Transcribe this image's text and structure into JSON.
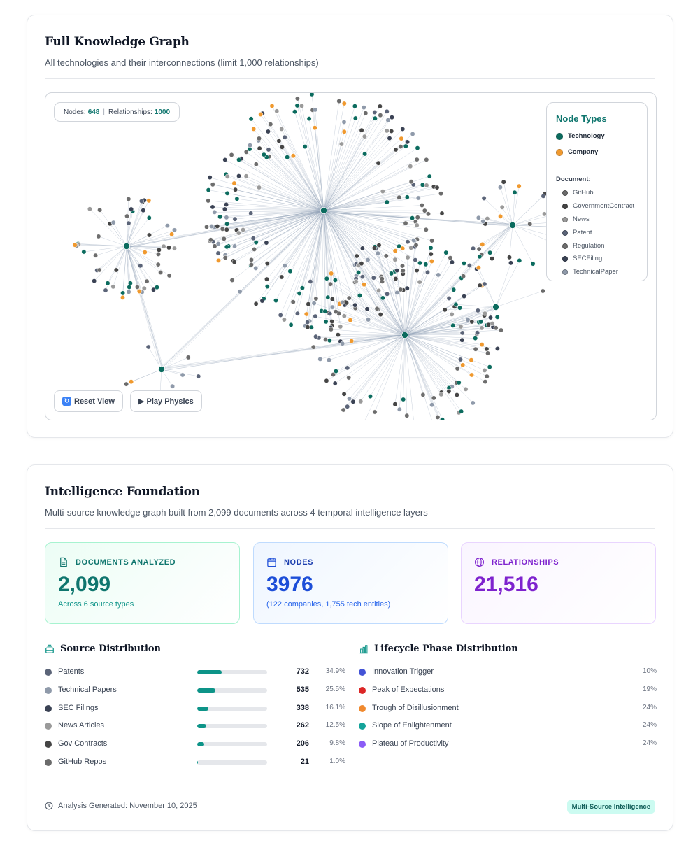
{
  "graph_card": {
    "title": "Full Knowledge Graph",
    "subtitle": "All technologies and their interconnections (limit 1,000 relationships)",
    "stats": {
      "nodes_label": "Nodes:",
      "nodes_value": "648",
      "separator": "|",
      "relationships_label": "Relationships:",
      "relationships_value": "1000"
    },
    "legend": {
      "title": "Node Types",
      "main_types": [
        {
          "label": "Technology",
          "color": "#0b6b5e"
        },
        {
          "label": "Company",
          "color": "#f0992e"
        }
      ],
      "document_label": "Document:",
      "document_types": [
        {
          "label": "GitHub",
          "color": "#6b6b6b"
        },
        {
          "label": "GovernmentContract",
          "color": "#454545"
        },
        {
          "label": "News",
          "color": "#9a9a9a"
        },
        {
          "label": "Patent",
          "color": "#5b6478"
        },
        {
          "label": "Regulation",
          "color": "#6e6e6e"
        },
        {
          "label": "SECFiling",
          "color": "#3a4254"
        },
        {
          "label": "TechnicalPaper",
          "color": "#8f9aaa"
        }
      ]
    },
    "buttons": {
      "reset_icon": "reset-icon",
      "reset_label": "Reset View",
      "play_icon": "play-icon",
      "play_label": "▶ Play Physics"
    }
  },
  "intel_card": {
    "title": "Intelligence Foundation",
    "subtitle": "Multi-source knowledge graph built from 2,099 documents across 4 temporal intelligence layers",
    "stats": [
      {
        "icon": "document-icon",
        "label": "DOCUMENTS ANALYZED",
        "value": "2,099",
        "note": "Across 6 source types",
        "color": "#0f766e"
      },
      {
        "icon": "calendar-icon",
        "label": "NODES",
        "value": "3976",
        "note": "(122 companies, 1,755 tech entities)",
        "color": "#1e40af"
      },
      {
        "icon": "globe-icon",
        "label": "RELATIONSHIPS",
        "value": "21,516",
        "note": "",
        "color": "#7e22ce"
      }
    ],
    "source_distribution": {
      "icon": "layers-icon",
      "title": "Source Distribution",
      "rows": [
        {
          "name": "Patents",
          "count": "732",
          "pct": "34.9%",
          "share": 0.349,
          "color": "#5b6478"
        },
        {
          "name": "Technical Papers",
          "count": "535",
          "pct": "25.5%",
          "share": 0.255,
          "color": "#8f9aaa"
        },
        {
          "name": "SEC Filings",
          "count": "338",
          "pct": "16.1%",
          "share": 0.161,
          "color": "#3a4254"
        },
        {
          "name": "News Articles",
          "count": "262",
          "pct": "12.5%",
          "share": 0.125,
          "color": "#9a9a9a"
        },
        {
          "name": "Gov Contracts",
          "count": "206",
          "pct": "9.8%",
          "share": 0.098,
          "color": "#454545"
        },
        {
          "name": "GitHub Repos",
          "count": "21",
          "pct": "1.0%",
          "share": 0.01,
          "color": "#6b6b6b"
        }
      ]
    },
    "lifecycle_distribution": {
      "icon": "bar-chart-icon",
      "title": "Lifecycle Phase Distribution",
      "rows": [
        {
          "name": "Innovation Trigger",
          "pct": "10%",
          "color": "#4353d6"
        },
        {
          "name": "Peak of Expectations",
          "pct": "19%",
          "color": "#dc2626"
        },
        {
          "name": "Trough of Disillusionment",
          "pct": "24%",
          "color": "#f0892e"
        },
        {
          "name": "Slope of Enlightenment",
          "pct": "24%",
          "color": "#14a39a"
        },
        {
          "name": "Plateau of Productivity",
          "pct": "24%",
          "color": "#8b5cf6"
        }
      ]
    },
    "footer": {
      "clock_icon": "clock-icon",
      "generated": "Analysis Generated: November 10, 2025",
      "badge": "Multi-Source Intelligence"
    }
  }
}
